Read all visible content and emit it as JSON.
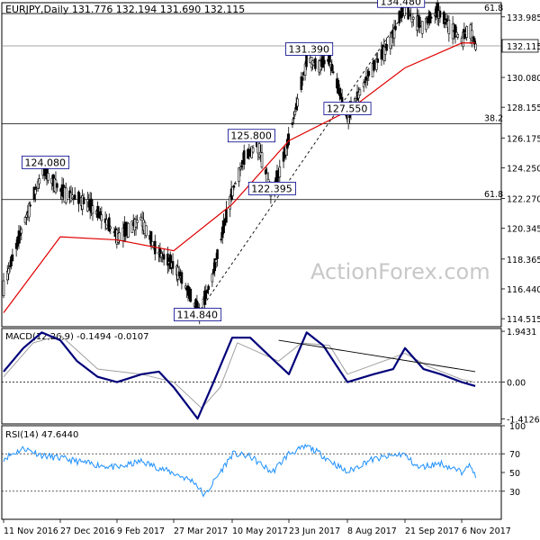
{
  "chart_data": [
    {
      "type": "candlestick",
      "panel": "price",
      "title": "EURJPY,Daily  131.776 132.194 131.690 132.115",
      "watermark": "ActionForex.com",
      "last_price": "132.115",
      "yaxis_ticks": [
        "133.985",
        "132.115",
        "130.080",
        "128.155",
        "126.175",
        "124.250",
        "122.270",
        "120.345",
        "118.365",
        "116.440",
        "114.515"
      ],
      "ylim": [
        114.0,
        134.9
      ],
      "moving_average": {
        "x": [
          "11 Nov 2016",
          "27 Dec 2016",
          "9 Feb 2017",
          "27 Mar 2017",
          "10 May 2017",
          "23 Jun 2017",
          "8 Aug 2017",
          "21 Sep 2017",
          "6 Nov 2017",
          "17 Nov 2017"
        ],
        "y": [
          114.9,
          119.8,
          119.6,
          118.9,
          121.9,
          126.0,
          127.9,
          130.7,
          132.3,
          132.3
        ]
      },
      "price_path": {
        "x": [
          "11 Nov 2016",
          "27 Nov 2016",
          "12 Dec 2016",
          "27 Dec 2016",
          "15 Jan 2017",
          "28 Jan 2017",
          "9 Feb 2017",
          "27 Feb 2017",
          "10 Mar 2017",
          "27 Mar 2017",
          "14 Apr 2017",
          "24 Apr 2017",
          "10 May 2017",
          "19 May 2017",
          "30 May 2017",
          "10 Jun 2017",
          "23 Jun 2017",
          "8 Jul 2017",
          "15 Jul 2017",
          "25 Jul 2017",
          "8 Aug 2017",
          "25 Aug 2017",
          "10 Sep 2017",
          "21 Sep 2017",
          "6 Oct 2017",
          "18 Oct 2017",
          "6 Nov 2017",
          "12 Nov 2017",
          "17 Nov 2017"
        ],
        "y": [
          116.6,
          120.7,
          124.1,
          122.7,
          122.0,
          121.0,
          119.8,
          121.0,
          119.0,
          117.7,
          114.8,
          117.2,
          122.8,
          124.8,
          125.8,
          122.4,
          126.0,
          131.4,
          130.8,
          131.2,
          127.5,
          130.3,
          132.2,
          134.5,
          133.4,
          134.3,
          132.5,
          133.4,
          132.1
        ]
      },
      "horizontal_lines": [
        {
          "label": "61.8",
          "value": 134.2
        },
        {
          "label": "38.2",
          "value": 127.1
        },
        {
          "label": "61.8",
          "value": 122.2
        },
        {
          "label": "",
          "value": 132.115
        }
      ],
      "box_labels": [
        {
          "text": "134.480",
          "x": "18 Sep 2017",
          "y": 134.48
        },
        {
          "text": "131.390",
          "x": "9 Jul 2017",
          "y": 131.39
        },
        {
          "text": "127.550",
          "x": "8 Aug 2017",
          "y": 127.55
        },
        {
          "text": "125.800",
          "x": "25 May 2017",
          "y": 125.8
        },
        {
          "text": "124.080",
          "x": "15 Dec 2016",
          "y": 124.08
        },
        {
          "text": "122.395",
          "x": "10 Jun 2017",
          "y": 122.395
        },
        {
          "text": "114.840",
          "x": "14 Apr 2017",
          "y": 114.84
        }
      ],
      "trendline": {
        "from": {
          "x": "14 Apr 2017",
          "y": 114.84
        },
        "to": {
          "x": "21 Sep 2017",
          "y": 134.3
        }
      }
    },
    {
      "type": "line",
      "panel": "macd",
      "title": "MACD(12,26,9) -0.1494 -0.0107",
      "yaxis_ticks": [
        "1.9431",
        "0.00",
        "-1.4126"
      ],
      "ylim": [
        -1.6,
        2.05
      ],
      "series": [
        {
          "name": "",
          "x": [
            "11 Nov 2016",
            "27 Nov 2016",
            "12 Dec 2016",
            "27 Dec 2016",
            "9 Jan 2017",
            "25 Jan 2017",
            "9 Feb 2017",
            "1 Mar 2017",
            "15 Mar 2017",
            "27 Mar 2017",
            "14 Apr 2017",
            "26 Apr 2017",
            "10 May 2017",
            "24 May 2017",
            "10 Jun 2017",
            "23 Jun 2017",
            "7 Jul 2017",
            "20 Jul 2017",
            "8 Aug 2017",
            "28 Aug 2017",
            "12 Sep 2017",
            "21 Sep 2017",
            "6 Oct 2017",
            "20 Oct 2017",
            "6 Nov 2017",
            "17 Nov 2017"
          ],
          "y": [
            0.4,
            1.3,
            1.9,
            1.6,
            0.8,
            0.2,
            0.0,
            0.3,
            0.4,
            -0.2,
            -1.4,
            0.0,
            1.7,
            1.7,
            0.9,
            0.3,
            1.9,
            1.4,
            0.0,
            0.3,
            0.5,
            1.3,
            0.5,
            0.3,
            0.0,
            -0.15
          ]
        },
        {
          "name": "",
          "x": [
            "11 Nov 2016",
            "5 Dec 2016",
            "27 Dec 2016",
            "25 Jan 2017",
            "1 Mar 2017",
            "27 Mar 2017",
            "17 Apr 2017",
            "1 May 2017",
            "14 May 2017",
            "15 Jun 2017",
            "3 Jul 2017",
            "25 Jul 2017",
            "8 Aug 2017",
            "21 Sep 2017",
            "10 Oct 2017",
            "6 Nov 2017",
            "17 Nov 2017"
          ],
          "y": [
            0.2,
            1.5,
            1.8,
            0.5,
            0.3,
            0.0,
            -1.0,
            -0.2,
            1.5,
            0.8,
            1.5,
            1.4,
            0.3,
            1.1,
            0.6,
            0.1,
            -0.01
          ]
        }
      ],
      "trendline": {
        "from": {
          "x": "15 Jun 2017",
          "y": 1.6
        },
        "to": {
          "x": "17 Nov 2017",
          "y": 0.4
        }
      }
    },
    {
      "type": "line",
      "panel": "rsi",
      "title": "RSI(14) 47.6440",
      "yaxis_ticks": [
        "100",
        "70",
        "50",
        "30",
        "0"
      ],
      "ylim": [
        0,
        100
      ],
      "levels": [
        70,
        30
      ],
      "series": [
        {
          "name": "",
          "x": [
            "11 Nov 2016",
            "27 Nov 2016",
            "12 Dec 2016",
            "27 Dec 2016",
            "15 Jan 2017",
            "9 Feb 2017",
            "27 Feb 2017",
            "27 Mar 2017",
            "10 Apr 2017",
            "18 Apr 2017",
            "26 Apr 2017",
            "10 May 2017",
            "24 May 2017",
            "10 Jun 2017",
            "23 Jun 2017",
            "8 Jul 2017",
            "20 Jul 2017",
            "8 Aug 2017",
            "25 Aug 2017",
            "21 Sep 2017",
            "3 Oct 2017",
            "20 Oct 2017",
            "6 Nov 2017",
            "10 Nov 2017",
            "17 Nov 2017"
          ],
          "y": [
            65,
            76,
            68,
            65,
            60,
            55,
            62,
            48,
            40,
            25,
            42,
            70,
            67,
            50,
            70,
            78,
            68,
            50,
            63,
            70,
            55,
            60,
            50,
            60,
            47.6
          ]
        }
      ]
    }
  ],
  "xaxis_labels": [
    "11 Nov 2016",
    "27 Dec 2016",
    "9 Feb 2017",
    "27 Mar 2017",
    "10 May 2017",
    "23 Jun 2017",
    "8 Aug 2017",
    "21 Sep 2017",
    "6 Nov 2017"
  ],
  "colors": {
    "ma": "#e00000",
    "macd": "#00007a",
    "signal": "#a0a0a0",
    "trend": "#000000"
  }
}
